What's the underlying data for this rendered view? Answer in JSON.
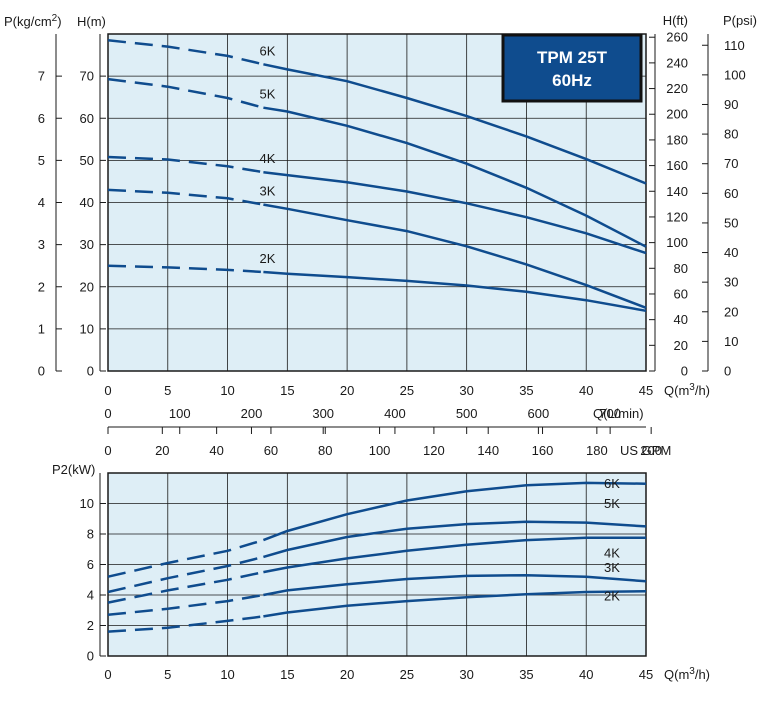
{
  "chart_data": [
    {
      "type": "line",
      "title": "",
      "model_label": {
        "line1": "TPM 25T",
        "line2": "60Hz"
      },
      "colors": {
        "plot_bg": "#deeef6",
        "grid": "#1a1a1a",
        "curve": "#0f4c8e",
        "box_fill": "#0f4c8e",
        "box_border": "#111111"
      },
      "grid": true,
      "axes": {
        "x_primary": {
          "label": "Q(m3/h)",
          "label_main": "Q(m",
          "label_sup": "3",
          "label_tail": "/h)",
          "range": [
            0,
            45
          ],
          "ticks": [
            0,
            5,
            10,
            15,
            20,
            25,
            30,
            35,
            40,
            45
          ]
        },
        "x_secondary_lpm": {
          "label": "Q(L/min)",
          "range": [
            0,
            750
          ],
          "ticks": [
            0,
            100,
            200,
            300,
            400,
            500,
            600,
            700
          ]
        },
        "x_tertiary_gpm": {
          "label": "US GPM",
          "range": [
            0,
            198.1
          ],
          "ticks": [
            0,
            20,
            40,
            60,
            80,
            100,
            120,
            140,
            160,
            180,
            200
          ]
        },
        "y_left_head": {
          "label": "H(m)",
          "range": [
            0,
            80
          ],
          "ticks": [
            0,
            10,
            20,
            30,
            40,
            50,
            60,
            70
          ]
        },
        "y_left_pressure": {
          "label": "P(kg/cm2)",
          "label_main": "P(kg/cm",
          "label_sup": "2",
          "label_tail": ")",
          "range": [
            0,
            8
          ],
          "ticks": [
            0,
            1,
            2,
            3,
            4,
            5,
            6,
            7
          ]
        },
        "y_right_feet": {
          "label": "H(ft)",
          "range": [
            0,
            262.5
          ],
          "ticks": [
            0,
            20,
            40,
            60,
            80,
            100,
            120,
            140,
            160,
            180,
            200,
            220,
            240,
            260
          ]
        },
        "y_right_psi": {
          "label": "P(psi)",
          "range": [
            0,
            113.8
          ],
          "ticks": [
            0,
            10,
            20,
            30,
            40,
            50,
            60,
            70,
            80,
            90,
            100,
            110
          ]
        }
      },
      "series": [
        {
          "name": "6K",
          "dashed_until": 13,
          "x": [
            0,
            5,
            10,
            13,
            15,
            20,
            25,
            30,
            35,
            40,
            45
          ],
          "y": [
            78.5,
            77,
            74.8,
            72.8,
            71.6,
            68.8,
            64.8,
            60.5,
            55.7,
            50.3,
            44.5
          ]
        },
        {
          "name": "5K",
          "dashed_until": 13,
          "x": [
            0,
            5,
            10,
            13,
            15,
            20,
            25,
            30,
            35,
            40,
            45
          ],
          "y": [
            69.3,
            67.5,
            64.8,
            62.5,
            61.6,
            58.2,
            54.1,
            49.2,
            43.5,
            36.9,
            29.5
          ]
        },
        {
          "name": "4K",
          "dashed_until": 13,
          "x": [
            0,
            5,
            10,
            13,
            15,
            20,
            25,
            30,
            35,
            40,
            45
          ],
          "y": [
            50.8,
            50.2,
            48.6,
            47.2,
            46.5,
            44.8,
            42.6,
            39.8,
            36.5,
            32.7,
            28
          ]
        },
        {
          "name": "3K",
          "dashed_until": 13,
          "x": [
            0,
            5,
            10,
            13,
            15,
            20,
            25,
            30,
            35,
            40,
            45
          ],
          "y": [
            43,
            42.3,
            41,
            39.5,
            38.5,
            35.8,
            33.2,
            29.6,
            25.3,
            20.4,
            15
          ]
        },
        {
          "name": "2K",
          "dashed_until": 13,
          "x": [
            0,
            5,
            10,
            13,
            15,
            20,
            25,
            30,
            35,
            40,
            45
          ],
          "y": [
            25,
            24.6,
            24,
            23.5,
            23.1,
            22.3,
            21.4,
            20.3,
            18.8,
            16.8,
            14.3
          ]
        }
      ]
    },
    {
      "type": "line",
      "title": "",
      "colors": {
        "plot_bg": "#deeef6",
        "grid": "#1a1a1a",
        "curve": "#0f4c8e"
      },
      "grid": true,
      "axes": {
        "x": {
          "label": "Q(m3/h)",
          "label_main": "Q(m",
          "label_sup": "3",
          "label_tail": "/h)",
          "range": [
            0,
            45
          ],
          "ticks": [
            0,
            5,
            10,
            15,
            20,
            25,
            30,
            35,
            40,
            45
          ]
        },
        "y": {
          "label": "P2(kW)",
          "range": [
            0,
            12
          ],
          "ticks": [
            0,
            2,
            4,
            6,
            8,
            10
          ]
        }
      },
      "series": [
        {
          "name": "6K",
          "dashed_until": 13,
          "x": [
            0,
            5,
            10,
            13,
            15,
            20,
            25,
            30,
            35,
            40,
            45
          ],
          "y": [
            5.2,
            6.1,
            6.9,
            7.6,
            8.2,
            9.3,
            10.2,
            10.8,
            11.2,
            11.35,
            11.3
          ]
        },
        {
          "name": "5K",
          "dashed_until": 13,
          "x": [
            0,
            5,
            10,
            13,
            15,
            20,
            25,
            30,
            35,
            40,
            45
          ],
          "y": [
            4.2,
            5.1,
            5.9,
            6.5,
            6.95,
            7.8,
            8.35,
            8.65,
            8.8,
            8.75,
            8.5
          ]
        },
        {
          "name": "4K",
          "dashed_until": 13,
          "x": [
            0,
            5,
            10,
            13,
            15,
            20,
            25,
            30,
            35,
            40,
            45
          ],
          "y": [
            3.5,
            4.3,
            5.0,
            5.5,
            5.8,
            6.4,
            6.9,
            7.3,
            7.6,
            7.75,
            7.75
          ]
        },
        {
          "name": "3K",
          "dashed_until": 13,
          "x": [
            0,
            5,
            10,
            13,
            15,
            20,
            25,
            30,
            35,
            40,
            45
          ],
          "y": [
            2.7,
            3.1,
            3.6,
            4.0,
            4.3,
            4.7,
            5.05,
            5.25,
            5.3,
            5.2,
            4.9
          ]
        },
        {
          "name": "2K",
          "dashed_until": 13,
          "x": [
            0,
            5,
            10,
            13,
            15,
            20,
            25,
            30,
            35,
            40,
            45
          ],
          "y": [
            1.6,
            1.85,
            2.3,
            2.6,
            2.85,
            3.3,
            3.6,
            3.85,
            4.05,
            4.2,
            4.25
          ]
        }
      ]
    }
  ]
}
